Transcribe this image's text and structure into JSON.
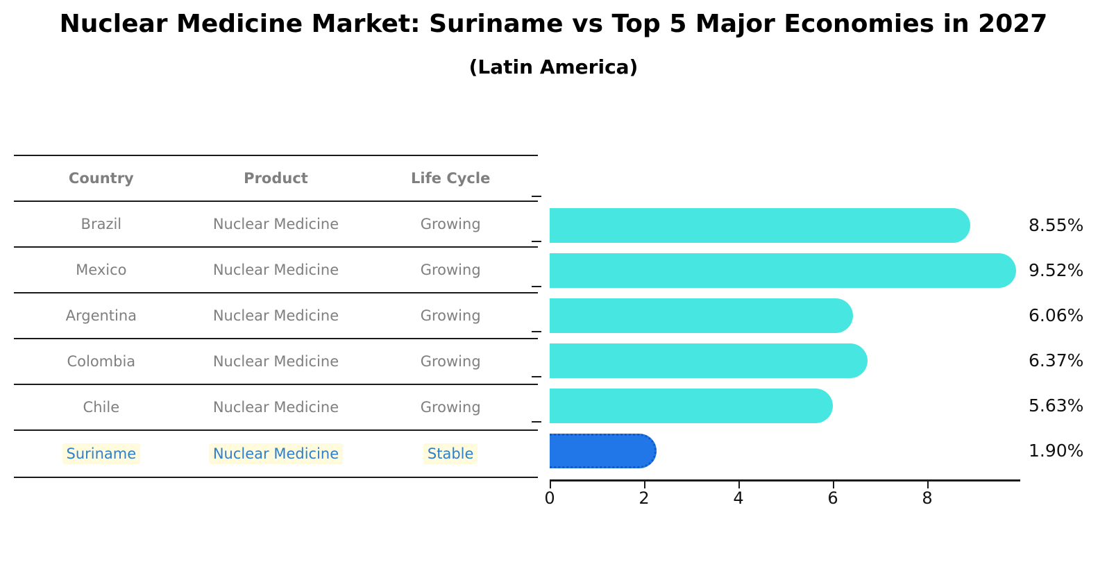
{
  "title": "Nuclear Medicine Market: Suriname vs Top 5 Major Economies in 2027",
  "subtitle": "(Latin America)",
  "table": {
    "headers": [
      "Country",
      "Product",
      "Life Cycle"
    ],
    "rows": [
      {
        "country": "Brazil",
        "product": "Nuclear Medicine",
        "life_cycle": "Growing",
        "highlight": false
      },
      {
        "country": "Mexico",
        "product": "Nuclear Medicine",
        "life_cycle": "Growing",
        "highlight": false
      },
      {
        "country": "Argentina",
        "product": "Nuclear Medicine",
        "life_cycle": "Growing",
        "highlight": false
      },
      {
        "country": "Colombia",
        "product": "Nuclear Medicine",
        "life_cycle": "Growing",
        "highlight": false
      },
      {
        "country": "Chile",
        "product": "Nuclear Medicine",
        "life_cycle": "Growing",
        "highlight": false
      },
      {
        "country": "Suriname",
        "product": "Nuclear Medicine",
        "life_cycle": "Stable",
        "highlight": true
      }
    ]
  },
  "chart_data": {
    "type": "bar",
    "orientation": "horizontal",
    "title": "Nuclear Medicine Market: Suriname vs Top 5 Major Economies in 2027",
    "subtitle": "(Latin America)",
    "categories": [
      "Brazil",
      "Mexico",
      "Argentina",
      "Colombia",
      "Chile",
      "Suriname"
    ],
    "values": [
      8.55,
      9.52,
      6.06,
      6.37,
      5.63,
      1.9
    ],
    "value_labels": [
      "8.55%",
      "9.52%",
      "6.06%",
      "6.37%",
      "5.63%",
      "1.90%"
    ],
    "xticks": [
      0,
      2,
      4,
      6,
      8
    ],
    "xlim": [
      0,
      9.97
    ],
    "grid": false,
    "legend": "none",
    "bar_color": "#47E6E0",
    "highlight_color": "#2176E8",
    "highlight_index": 5,
    "highlight_category": "Suriname"
  },
  "colors": {
    "background": "#ffffff",
    "bar_cyan": "#47E6E0",
    "bar_blue": "#2176E8",
    "table_text_gray": "#7f7f7f",
    "highlight_text_blue": "#2e7fcc",
    "highlight_cell_bg": "#fffbdc",
    "axis_black": "#1a1a1a"
  }
}
